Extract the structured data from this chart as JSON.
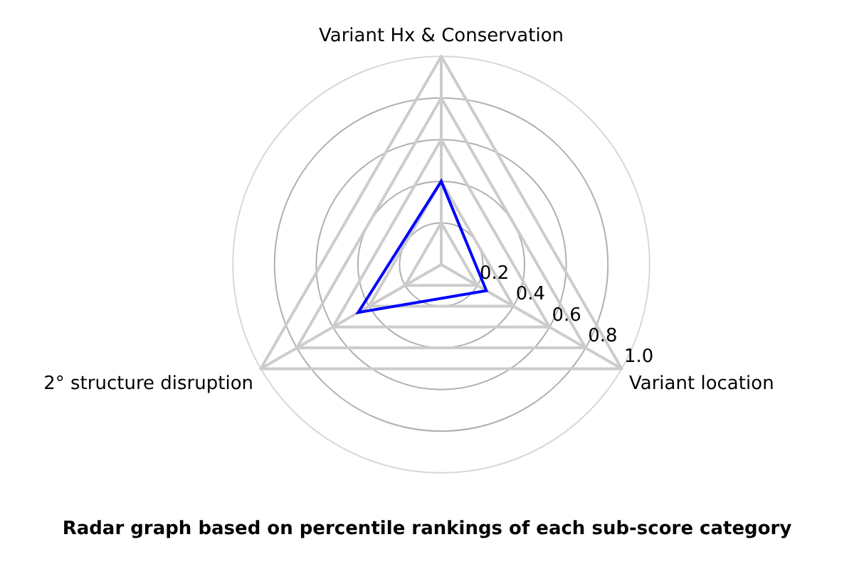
{
  "chart_data": {
    "type": "radar",
    "title": "Radar graph based on percentile rankings of each sub-score category",
    "categories": [
      "Variant Hx & Conservation",
      "Variant location",
      "2° structure disruption"
    ],
    "series": [
      {
        "color": "#0000ff",
        "values": [
          0.4,
          0.25,
          0.46
        ]
      }
    ],
    "ylim": [
      0,
      1
    ],
    "yticks": [
      0.2,
      0.4,
      0.6,
      0.8,
      {
        "value": 1,
        "label": "1.0"
      }
    ],
    "grid": true,
    "legend": false,
    "marker": "none",
    "line_style": "solid"
  }
}
